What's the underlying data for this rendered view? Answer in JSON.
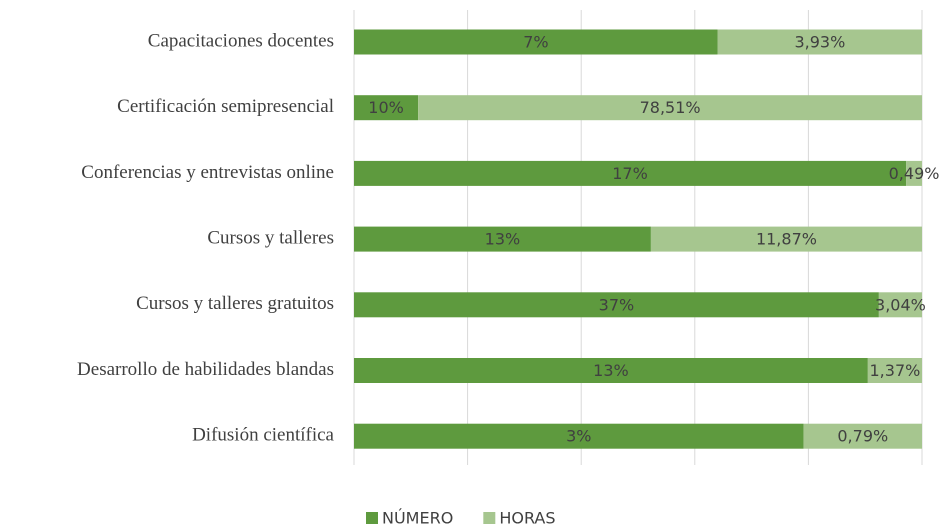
{
  "chart_data": {
    "type": "bar",
    "orientation": "horizontal",
    "stacked": "percent",
    "categories": [
      "Capacitaciones docentes",
      "Certificación semipresencial",
      "Conferencias y entrevistas online",
      "Cursos y talleres",
      "Cursos y talleres gratuitos",
      "Desarrollo de habilidades blandas",
      "Difusión científica"
    ],
    "series": [
      {
        "name": "NÚMERO",
        "color": "#5e9a3e",
        "values": [
          7,
          10,
          17,
          13,
          37,
          13,
          3
        ],
        "value_labels": [
          "7%",
          "10%",
          "17%",
          "13%",
          "37%",
          "13%",
          "3%"
        ]
      },
      {
        "name": "HORAS",
        "color": "#a6c68f",
        "values": [
          3.93,
          78.51,
          0.49,
          11.87,
          3.04,
          1.37,
          0.79
        ],
        "value_labels": [
          "3,93%",
          "78,51%",
          "0,49%",
          "11,87%",
          "3,04%",
          "1,37%",
          "0,79%"
        ]
      }
    ],
    "xlim": [
      0,
      100
    ],
    "xticks": [
      0,
      20,
      40,
      60,
      80,
      100
    ],
    "grid": true,
    "legend": "bottom"
  }
}
